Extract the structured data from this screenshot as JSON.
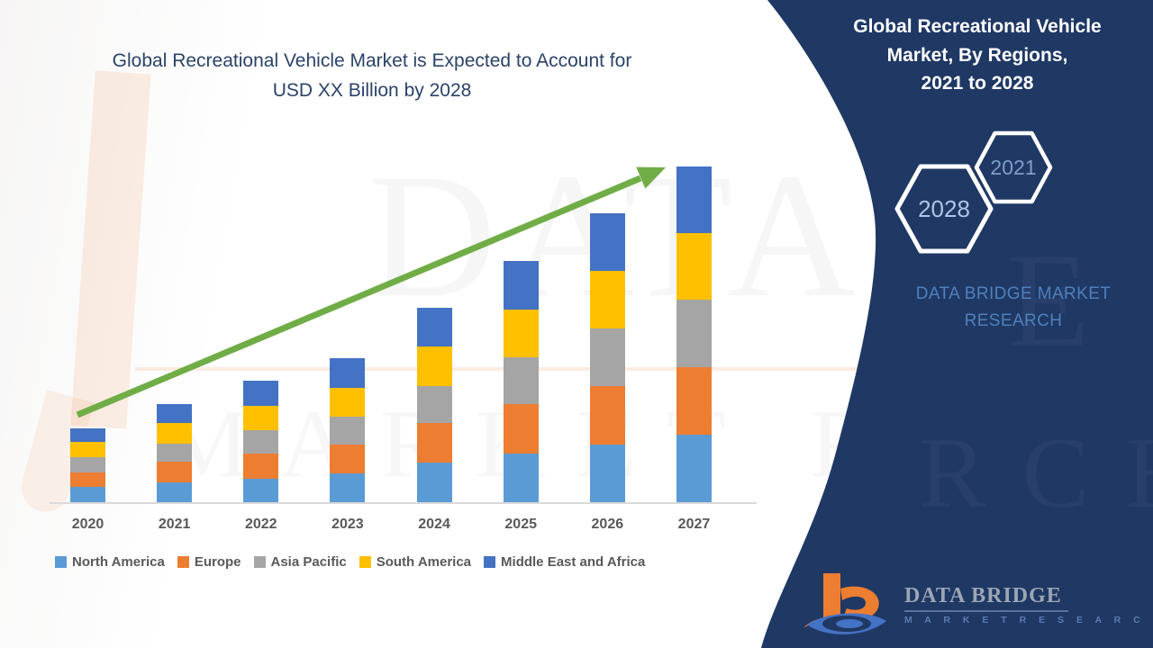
{
  "main": {
    "title_lines": [
      "Global Recreational Vehicle Market is Expected to Account for",
      "USD XX Billion by 2028"
    ],
    "title_color": "#2b4368"
  },
  "watermark": {
    "line1": "DATA BRI",
    "line2": "MARKET RESEARCH",
    "panel_letter": "E",
    "panel_letters2": "RCH"
  },
  "panel": {
    "background_color": "#1f3864",
    "title_lines": [
      "Global Recreational Vehicle",
      "Market, By Regions,",
      "2021 to 2028"
    ],
    "hexagons": [
      {
        "label": "2028",
        "text_color": "#aec5e6"
      },
      {
        "label": "2021",
        "text_color": "#7f9fcb"
      }
    ],
    "brand_lines": [
      "DATA BRIDGE MARKET",
      "RESEARCH"
    ],
    "brand_color": "#4f81bd"
  },
  "logo": {
    "name": "DATA BRIDGE",
    "subtitle": "M A R K E T   R E S E A R C H",
    "b_color": "#ED7D31",
    "swirl_color": "#4472C4"
  },
  "chart_data": {
    "type": "bar",
    "stacked": true,
    "title": "Global Recreational Vehicle Market is Expected to Account for USD XX Billion by 2028",
    "xlabel": "",
    "ylabel": "",
    "yaxis_visible": false,
    "grid": false,
    "legend_position": "bottom",
    "units": "relative height (no y-axis values shown in image)",
    "categories": [
      "2020",
      "2021",
      "2022",
      "2023",
      "2024",
      "2025",
      "2026",
      "2027"
    ],
    "series": [
      {
        "name": "North America",
        "color": "#5B9BD5",
        "values": [
          17,
          22,
          26,
          32,
          44,
          54,
          64,
          75
        ]
      },
      {
        "name": "Europe",
        "color": "#ED7D31",
        "values": [
          16,
          23,
          28,
          32,
          44,
          55,
          65,
          75
        ]
      },
      {
        "name": "Asia Pacific",
        "color": "#A5A5A5",
        "values": [
          17,
          20,
          26,
          31,
          41,
          52,
          64,
          75
        ]
      },
      {
        "name": "South America",
        "color": "#FFC000",
        "values": [
          17,
          23,
          27,
          32,
          44,
          53,
          64,
          74
        ]
      },
      {
        "name": "Middle East and Africa",
        "color": "#4472C4",
        "values": [
          15,
          21,
          28,
          33,
          43,
          54,
          64,
          74
        ]
      }
    ],
    "totals": [
      82,
      109,
      135,
      160,
      216,
      268,
      321,
      373
    ],
    "trend_arrow": {
      "present": true,
      "color": "#70AD47",
      "direction": "up-right"
    }
  }
}
